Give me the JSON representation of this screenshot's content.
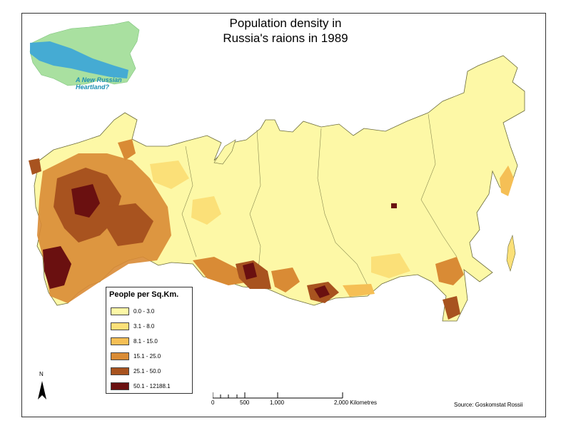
{
  "title": {
    "line1": "Population density in",
    "line2": "Russia's raions in 1989"
  },
  "inset": {
    "line1": "A New Russian",
    "line2": "Heartland?"
  },
  "legend": {
    "title": "People per Sq.Km.",
    "classes": [
      {
        "label": "0.0 - 3.0",
        "color": "#fdf8a6"
      },
      {
        "label": "3.1 - 8.0",
        "color": "#fbe078"
      },
      {
        "label": "8.1 - 15.0",
        "color": "#f5bf55"
      },
      {
        "label": "15.1 - 25.0",
        "color": "#d98b35"
      },
      {
        "label": "25.1 - 50.0",
        "color": "#a8531f"
      },
      {
        "label": "50.1 - 12188.1",
        "color": "#6a1010"
      }
    ]
  },
  "scale": {
    "ticks": [
      "0",
      "500",
      "1,000"
    ],
    "end_label": "2,000 Kilometres"
  },
  "north_label": "N",
  "source": "Source: Goskomstat Rossii",
  "colors": {
    "land_light": "#fdf8a6",
    "inset_green": "#a9e0a0",
    "inset_blue": "#3fa8d6",
    "border": "#555555"
  }
}
